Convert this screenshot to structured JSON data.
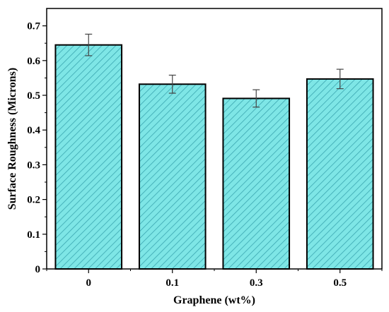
{
  "chart_data": {
    "type": "bar",
    "categories": [
      "0",
      "0.1",
      "0.3",
      "0.5"
    ],
    "values": [
      0.645,
      0.532,
      0.491,
      0.547
    ],
    "errors": [
      0.031,
      0.026,
      0.025,
      0.028
    ],
    "xlabel": "Graphene (wt%)",
    "ylabel": "Surface Roughness (Microns)",
    "ylim": [
      0,
      0.75
    ],
    "yticks": [
      "0",
      "0.1",
      "0.2",
      "0.3",
      "0.4",
      "0.5",
      "0.6",
      "0.7"
    ],
    "grid": false,
    "legend": "none",
    "colors": {
      "bar_fill": "#7ee6e6",
      "hatch": "#3aa6b0",
      "edge": "#000000"
    }
  }
}
